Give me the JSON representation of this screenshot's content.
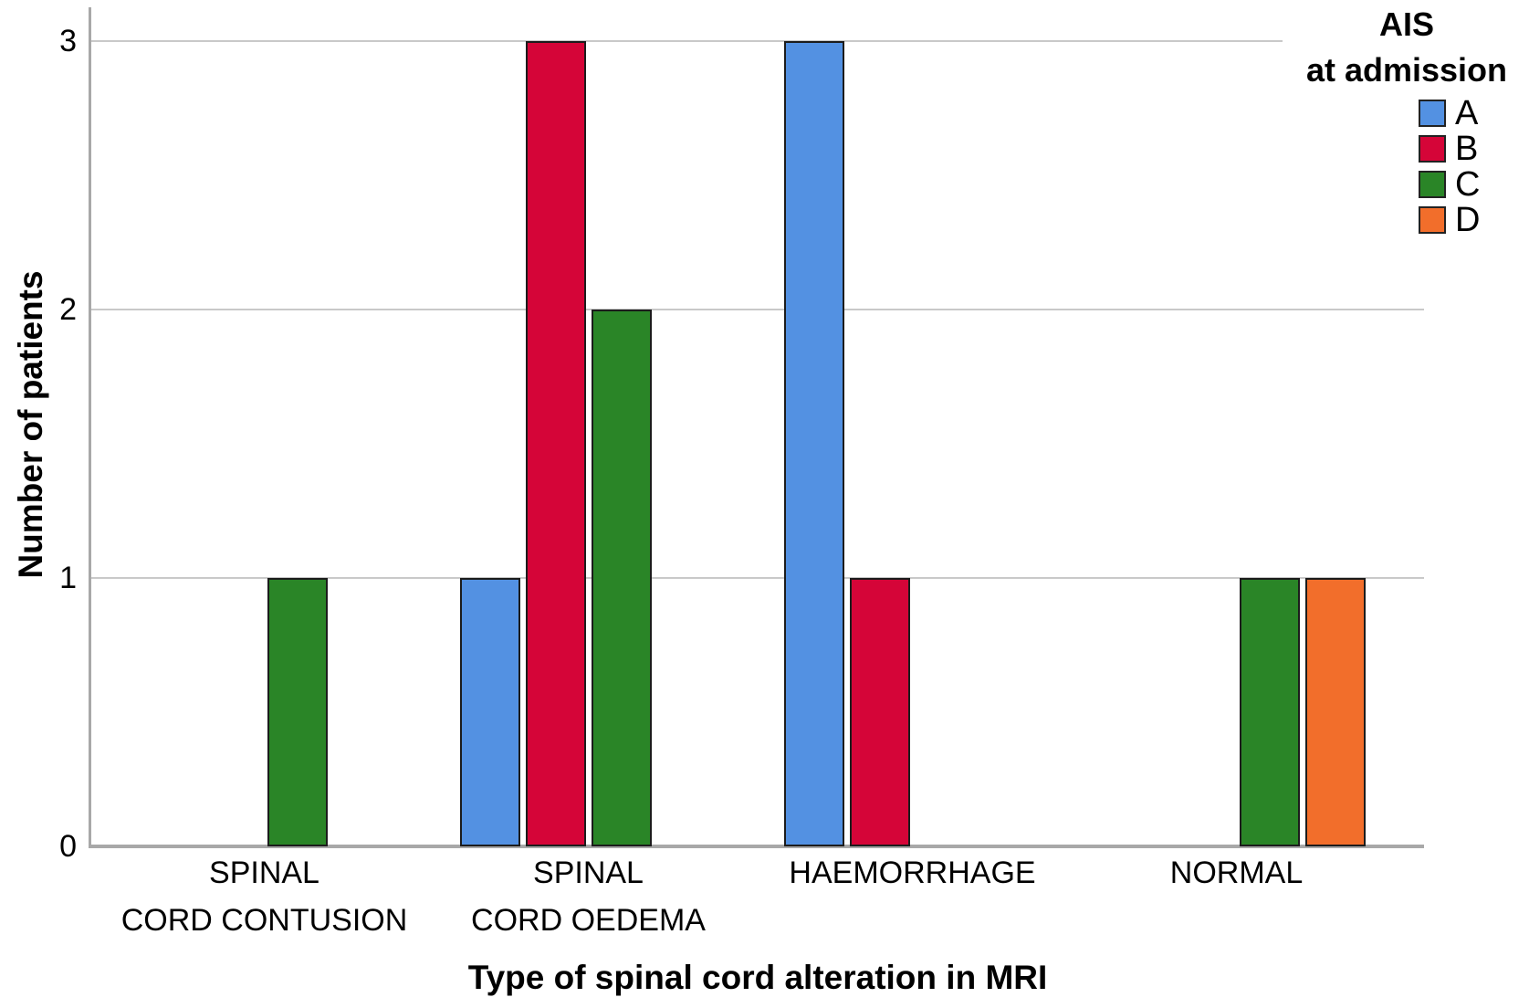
{
  "chart_data": {
    "type": "bar",
    "title": "",
    "xlabel": "Type of spinal cord alteration in MRI",
    "ylabel": "Number of patients",
    "categories": [
      "SPINAL CORD CONTUSION",
      "SPINAL CORD OEDEMA",
      "HAEMORRHAGE",
      "NORMAL"
    ],
    "category_label_lines": [
      [
        "SPINAL",
        "CORD CONTUSION"
      ],
      [
        "SPINAL",
        "CORD OEDEMA"
      ],
      [
        "HAEMORRHAGE"
      ],
      [
        "NORMAL"
      ]
    ],
    "series": [
      {
        "name": "A",
        "color": "#5391E2",
        "values": [
          0,
          1,
          3,
          0
        ]
      },
      {
        "name": "B",
        "color": "#D50538",
        "values": [
          0,
          3,
          1,
          0
        ]
      },
      {
        "name": "C",
        "color": "#2A8527",
        "values": [
          1,
          2,
          0,
          1
        ]
      },
      {
        "name": "D",
        "color": "#F26E2B",
        "values": [
          0,
          0,
          0,
          1
        ]
      }
    ],
    "y_ticks": [
      0,
      1,
      2,
      3
    ],
    "ylim": [
      0,
      3
    ],
    "grid": "horizontal",
    "legend": {
      "title_line1": "AIS",
      "title_line2": "at admission",
      "entries": [
        "A",
        "B",
        "C",
        "D"
      ],
      "position": "top-right"
    },
    "axis_color": "#a8a8a8",
    "gridline_color": "#c9c9c9",
    "bar_border_color": "#1c1c1c",
    "text_color": "#000000"
  }
}
